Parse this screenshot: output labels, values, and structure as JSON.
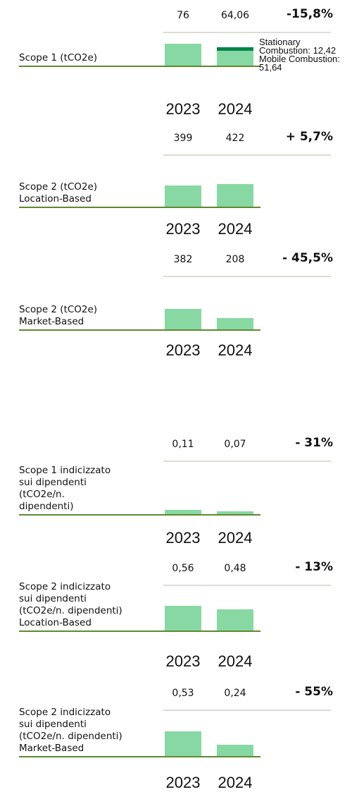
{
  "chart_data": [
    {
      "type": "bar",
      "title": [
        "Scope 1 (tCO2e)"
      ],
      "categories": [
        "2023",
        "2024"
      ],
      "values": [
        76,
        64.06
      ],
      "value_labels": [
        "76",
        "64,06"
      ],
      "change": "-15,8%",
      "color": "#88d8a3",
      "ylim": [
        0,
        245
      ],
      "breakdown": {
        "category": 1,
        "series": [
          {
            "name": "Mobile Combustion",
            "label": "Mobile Combustion: 51,64",
            "value": 51.64,
            "color": "#88d8a3"
          },
          {
            "name": "Stationary Combustion",
            "label": "Stationary Combustion: 12,42",
            "value": 12.42,
            "color": "#00854a"
          }
        ]
      }
    },
    {
      "type": "bar",
      "title": [
        "Scope 2 (tCO2e)",
        "Location-Based"
      ],
      "categories": [
        "2023",
        "2024"
      ],
      "values": [
        399,
        422
      ],
      "change": "+ 5,7%",
      "color": "#88d8a3",
      "ylim": [
        0,
        1330
      ]
    },
    {
      "type": "bar",
      "title": [
        "Scope 2 (tCO2e)",
        "Market-Based"
      ],
      "categories": [
        "2023",
        "2024"
      ],
      "values": [
        382,
        208
      ],
      "change": "- 45,5%",
      "color": "#88d8a3",
      "ylim": [
        0,
        1300
      ]
    },
    {
      "type": "bar",
      "title": [
        "Scope 1 indicizzato",
        "sui dipendenti",
        "(tCO2e/n.",
        "dipendenti)"
      ],
      "categories": [
        "2023",
        "2024"
      ],
      "values": [
        0.11,
        0.07
      ],
      "value_labels": [
        "0,11",
        "0,07"
      ],
      "change": "- 31%",
      "color": "#88d8a3",
      "ylim": [
        0,
        1.8
      ]
    },
    {
      "type": "bar",
      "title": [
        "Scope 2 indicizzato",
        "sui dipendenti",
        "(tCO2e/n. dipendenti)",
        "Location-Based"
      ],
      "categories": [
        "2023",
        "2024"
      ],
      "values": [
        0.56,
        0.48
      ],
      "value_labels": [
        "0,56",
        "0,48"
      ],
      "change": "- 13%",
      "color": "#88d8a3",
      "ylim": [
        0,
        1.6
      ]
    },
    {
      "type": "bar",
      "title": [
        "Scope 2 indicizzato",
        "sui dipendenti",
        "(tCO2e/n. dipendenti)",
        "Market-Based"
      ],
      "categories": [
        "2023",
        "2024"
      ],
      "values": [
        0.53,
        0.24
      ],
      "value_labels": [
        "0,53",
        "0,24"
      ],
      "change": "- 55%",
      "color": "#88d8a3",
      "ylim": [
        0,
        1.5
      ]
    }
  ]
}
